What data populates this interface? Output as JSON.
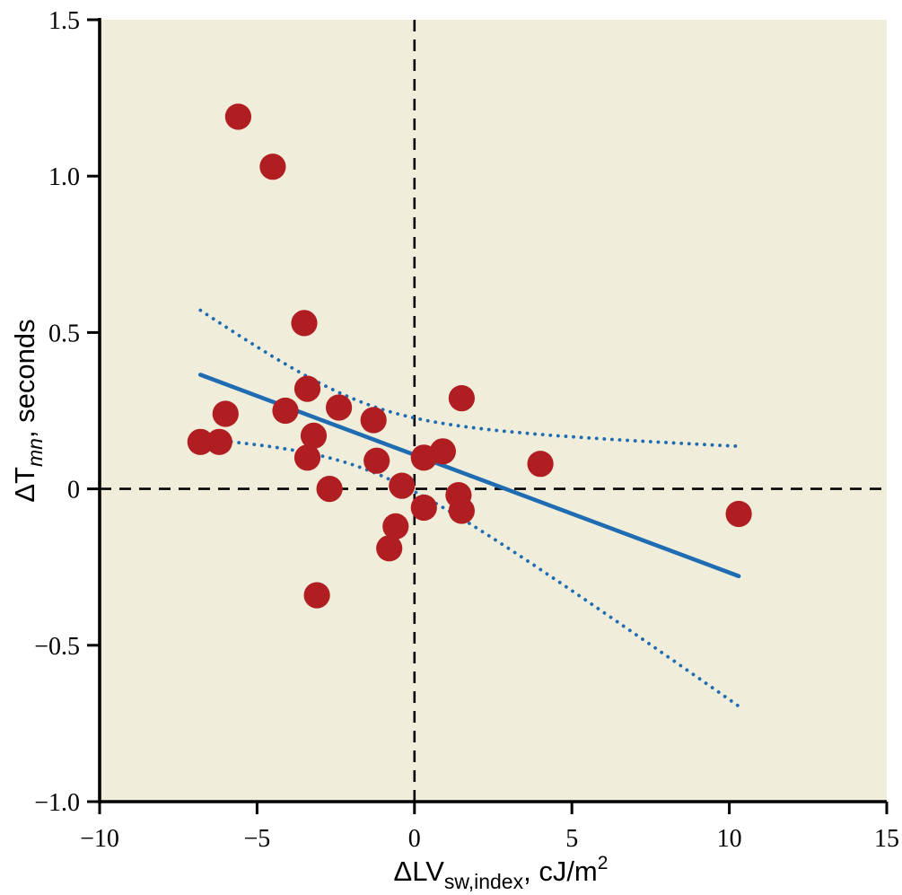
{
  "chart_data": {
    "type": "scatter",
    "title": "",
    "x_axis": {
      "label_prefix": "ΔLV",
      "label_subscript": "sw,index",
      "subscript_italic": false,
      "label_mid": ", cJ/m",
      "label_superscript": "2",
      "ticks": [
        -10,
        -5,
        0,
        5,
        10,
        15
      ],
      "tick_labels": [
        "−10",
        "−5",
        "0",
        "5",
        "10",
        "15"
      ],
      "range": [
        -10,
        15
      ]
    },
    "y_axis": {
      "label_prefix": "ΔT",
      "label_subscript": "mn",
      "subscript_italic": true,
      "label_mid": ", seconds",
      "label_superscript": "",
      "ticks": [
        1.5,
        1.0,
        0.5,
        0,
        -0.5,
        -1.0
      ],
      "tick_labels": [
        "1.5",
        "1.0",
        "0.5",
        "0",
        "−0.5",
        "−1.0"
      ],
      "range": [
        -1.0,
        1.5
      ]
    },
    "reference_lines": {
      "vertical_at_x": 0,
      "horizontal_at_y": 0
    },
    "points": [
      [
        -6.8,
        0.15
      ],
      [
        -6.2,
        0.15
      ],
      [
        -6.0,
        0.24
      ],
      [
        -5.6,
        1.19
      ],
      [
        -4.5,
        1.03
      ],
      [
        -4.1,
        0.25
      ],
      [
        -3.5,
        0.53
      ],
      [
        -3.4,
        0.32
      ],
      [
        -3.4,
        0.1
      ],
      [
        -3.2,
        0.17
      ],
      [
        -3.1,
        -0.34
      ],
      [
        -2.7,
        0.0
      ],
      [
        -2.4,
        0.26
      ],
      [
        -1.3,
        0.22
      ],
      [
        -1.2,
        0.09
      ],
      [
        -0.8,
        -0.19
      ],
      [
        -0.6,
        -0.12
      ],
      [
        -0.4,
        0.01
      ],
      [
        0.3,
        0.1
      ],
      [
        0.3,
        -0.06
      ],
      [
        0.9,
        0.12
      ],
      [
        1.4,
        -0.02
      ],
      [
        1.5,
        0.29
      ],
      [
        1.5,
        -0.07
      ],
      [
        4.0,
        0.08
      ],
      [
        10.3,
        -0.08
      ]
    ],
    "regression_line": {
      "x_start": -6.8,
      "x_end": 10.3,
      "intercept": 0.109,
      "slope": -0.0377,
      "y_start": 0.365,
      "y_end": -0.279
    },
    "confidence_band": {
      "x_start": -6.8,
      "x_end": 10.3,
      "half_width_min": 0.105,
      "x_mean": -1.57,
      "spread": 3.1,
      "upper_start_y": 0.58,
      "upper_end_y": 0.14,
      "lower_start_y": 0.15,
      "lower_end_y": -0.68
    },
    "legend": "none",
    "grid": "off",
    "colors": {
      "point": "#B01E22",
      "line": "#1F6CB2",
      "plot_background": "#F0EDDA",
      "axis": "#000000",
      "reference_dash": "#000000"
    }
  }
}
